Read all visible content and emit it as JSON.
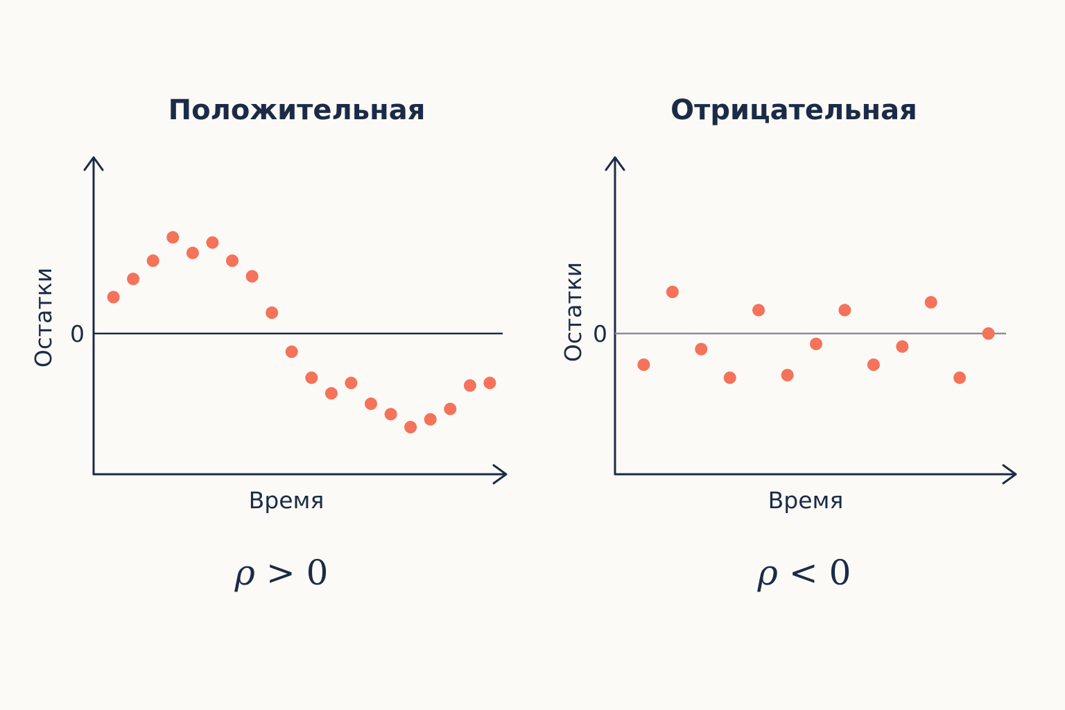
{
  "colors": {
    "background": "#fcfaf6",
    "ink": "#1b2b47",
    "points": "#f4735a"
  },
  "chart_data": [
    {
      "type": "scatter",
      "title": "Положительная",
      "xlabel": "Время",
      "ylabel": "Остатки",
      "formula": {
        "symbol": "ρ",
        "relation": " > 0"
      },
      "y_ticks": [
        "0"
      ],
      "zero_line_color": "#1b2b47",
      "xlim": [
        0,
        21
      ],
      "ylim": [
        -5,
        5
      ],
      "grid": false,
      "x": [
        1,
        2,
        3,
        4,
        5,
        6,
        7,
        8,
        9,
        10,
        11,
        12,
        13,
        14,
        15,
        16,
        17,
        18,
        19,
        20
      ],
      "y": [
        1.4,
        2.1,
        2.8,
        3.7,
        3.1,
        3.5,
        2.8,
        2.2,
        0.8,
        -0.7,
        -1.7,
        -2.3,
        -1.9,
        -2.7,
        -3.1,
        -3.6,
        -3.3,
        -2.9,
        -2.0,
        -1.9
      ]
    },
    {
      "type": "scatter",
      "title": "Отрицательная",
      "xlabel": "Время",
      "ylabel": "Остатки",
      "formula": {
        "symbol": "ρ",
        "relation": " < 0"
      },
      "y_ticks": [
        "0"
      ],
      "zero_line_color": "#8b8f9b",
      "xlim": [
        0,
        14
      ],
      "ylim": [
        -5,
        5
      ],
      "grid": false,
      "x": [
        1,
        2,
        3,
        4,
        5,
        6,
        7,
        8,
        9,
        10,
        11,
        12,
        13
      ],
      "y": [
        -1.2,
        1.6,
        -0.6,
        -1.7,
        0.9,
        -1.6,
        -0.4,
        0.9,
        -1.2,
        -0.5,
        1.2,
        -1.7,
        0.0
      ]
    }
  ]
}
